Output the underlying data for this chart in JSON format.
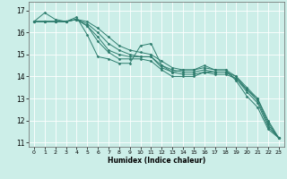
{
  "title": "",
  "xlabel": "Humidex (Indice chaleur)",
  "bg_color": "#cceee8",
  "grid_color": "#ffffff",
  "line_color": "#2e7d6e",
  "xlim": [
    -0.5,
    23.5
  ],
  "ylim": [
    10.8,
    17.4
  ],
  "xticks": [
    0,
    1,
    2,
    3,
    4,
    5,
    6,
    7,
    8,
    9,
    10,
    11,
    12,
    13,
    14,
    15,
    16,
    17,
    18,
    19,
    20,
    21,
    22,
    23
  ],
  "yticks": [
    11,
    12,
    13,
    14,
    15,
    16,
    17
  ],
  "series": [
    [
      16.5,
      16.9,
      16.6,
      16.5,
      16.7,
      15.9,
      14.9,
      14.8,
      14.6,
      14.6,
      15.4,
      15.5,
      14.5,
      14.2,
      14.3,
      14.3,
      14.5,
      14.3,
      14.3,
      13.8,
      13.1,
      12.6,
      11.6,
      11.2
    ],
    [
      16.5,
      16.5,
      16.5,
      16.5,
      16.6,
      16.3,
      15.6,
      15.1,
      14.8,
      14.8,
      14.8,
      14.7,
      14.3,
      14.0,
      14.0,
      14.0,
      14.2,
      14.1,
      14.1,
      13.9,
      13.3,
      12.8,
      11.7,
      11.2
    ],
    [
      16.5,
      16.5,
      16.5,
      16.5,
      16.6,
      16.3,
      15.8,
      15.2,
      15.0,
      14.9,
      14.9,
      14.9,
      14.4,
      14.2,
      14.1,
      14.1,
      14.2,
      14.2,
      14.2,
      13.9,
      13.4,
      12.9,
      11.8,
      11.2
    ],
    [
      16.5,
      16.5,
      16.5,
      16.5,
      16.6,
      16.4,
      16.0,
      15.5,
      15.2,
      15.0,
      14.9,
      14.9,
      14.5,
      14.3,
      14.2,
      14.2,
      14.3,
      14.2,
      14.2,
      14.0,
      13.4,
      13.0,
      11.9,
      11.2
    ],
    [
      16.5,
      16.5,
      16.5,
      16.5,
      16.6,
      16.5,
      16.2,
      15.8,
      15.4,
      15.2,
      15.1,
      15.0,
      14.7,
      14.4,
      14.3,
      14.3,
      14.4,
      14.3,
      14.3,
      14.0,
      13.5,
      13.0,
      12.0,
      11.2
    ]
  ]
}
